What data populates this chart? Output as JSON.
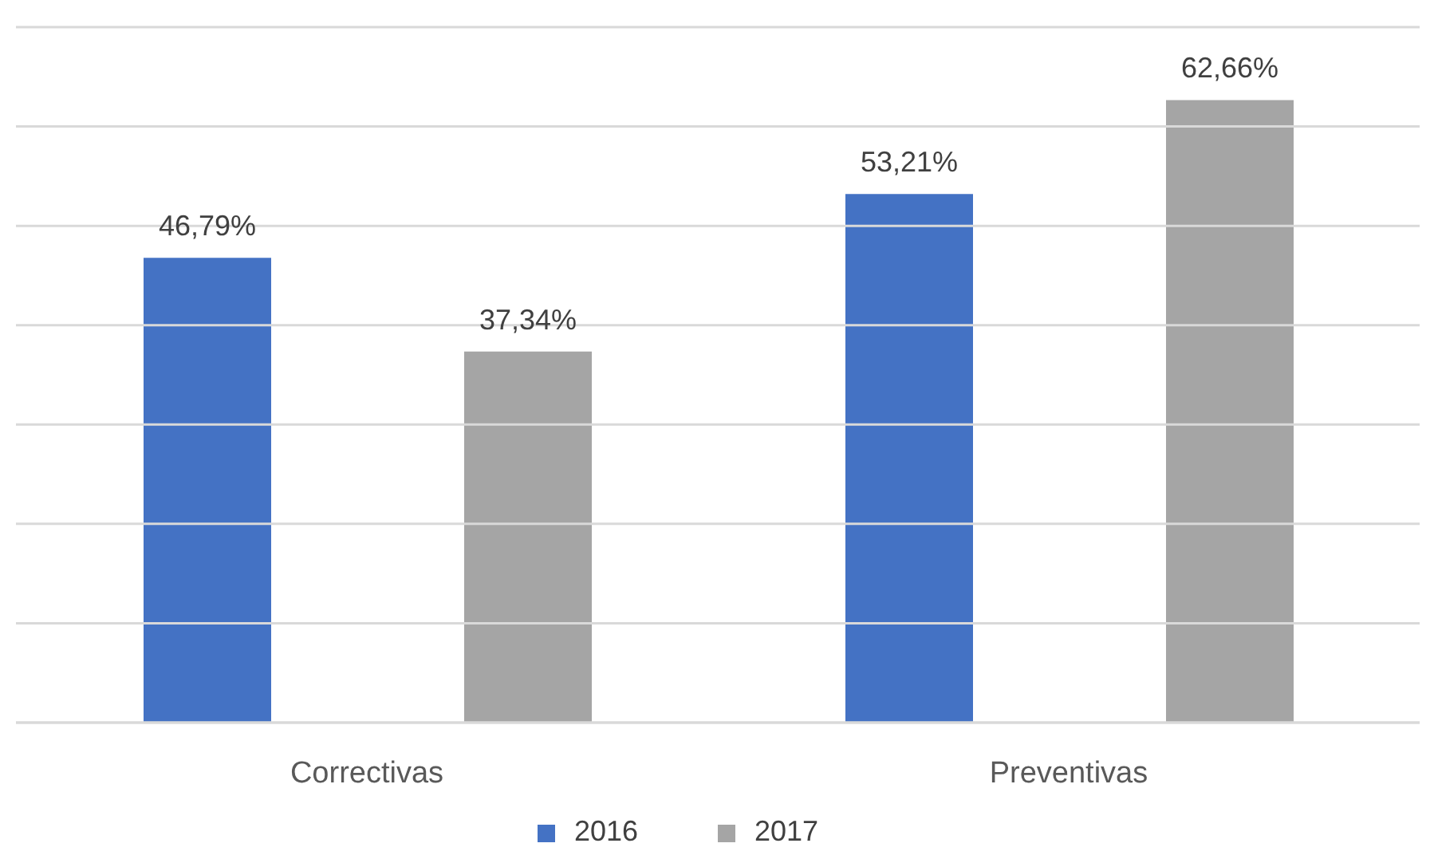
{
  "chart_data": {
    "type": "bar",
    "categories": [
      "Correctivas",
      "Preventivas"
    ],
    "series": [
      {
        "name": "2016",
        "color": "#4472c4",
        "values": [
          46.79,
          53.21
        ],
        "value_labels": [
          "46,79%",
          "53,21%"
        ]
      },
      {
        "name": "2017",
        "color": "#a5a5a5",
        "values": [
          37.34,
          62.66
        ],
        "value_labels": [
          "37,34%",
          "62,66%"
        ]
      }
    ],
    "ylim": [
      0,
      70
    ],
    "yticks": [
      {
        "value": 0,
        "label": null
      },
      {
        "value": 10,
        "label": null
      },
      {
        "value": 20,
        "label": null
      },
      {
        "value": 30,
        "label": null
      },
      {
        "value": 40,
        "label": null
      },
      {
        "value": 50,
        "label": null
      },
      {
        "value": 60,
        "label": null
      },
      {
        "value": 70,
        "label": null
      }
    ],
    "grid": "y",
    "legend": "bottom",
    "tick_labels": "x"
  }
}
